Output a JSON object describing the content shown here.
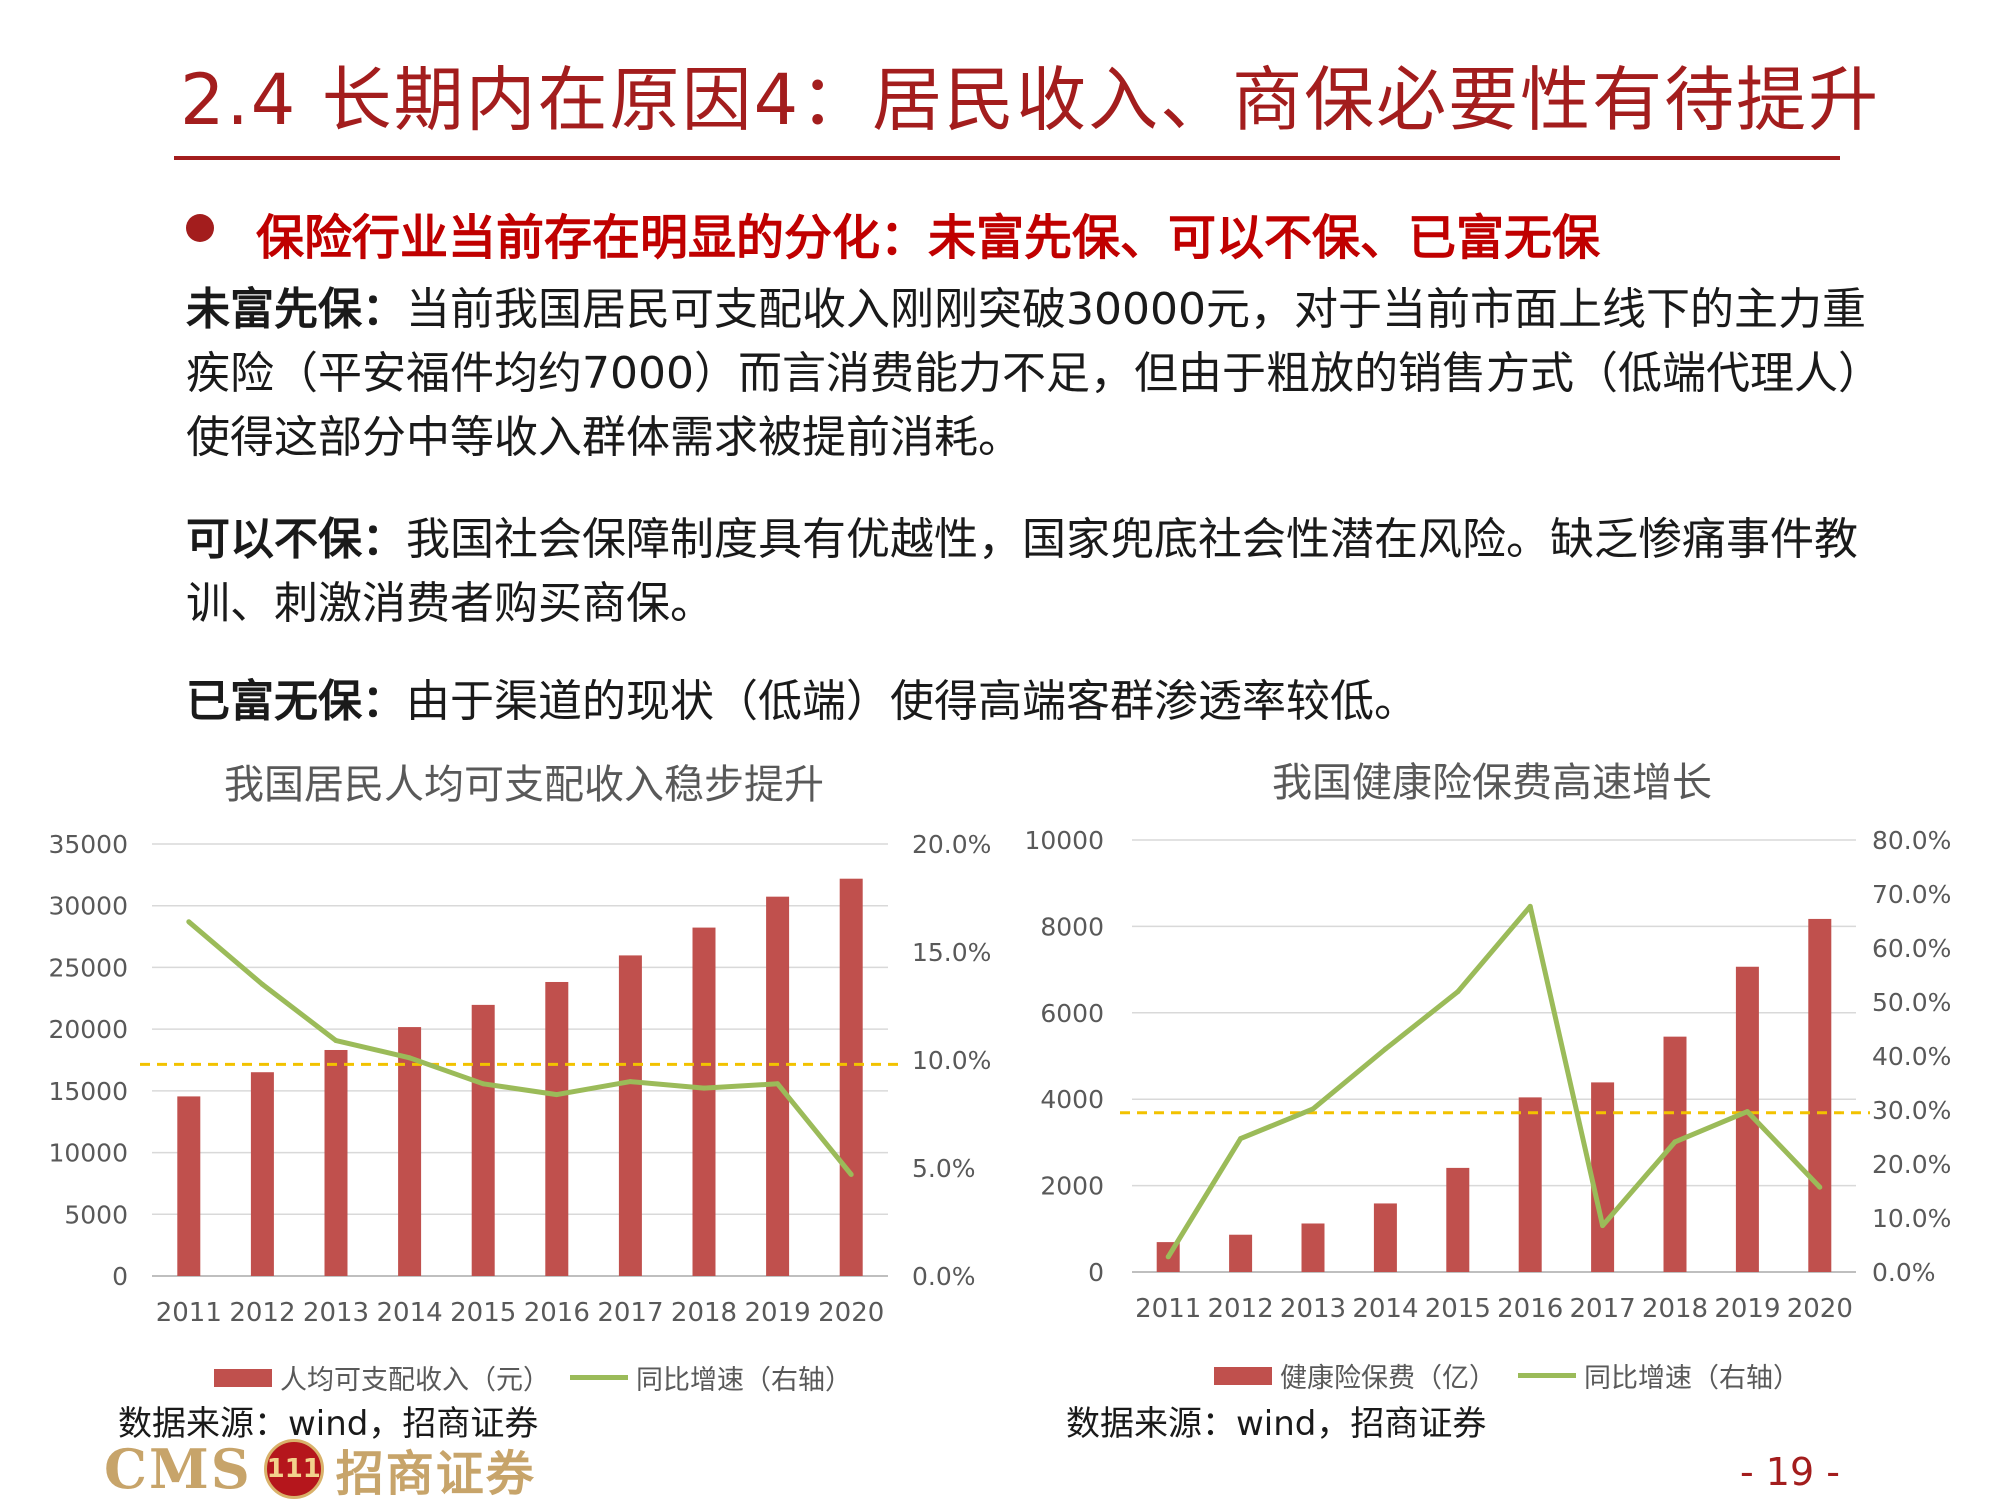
{
  "header": {
    "title": "2.4  长期内在原因4：居民收入、商保必要性有待提升",
    "bullet": "保险行业当前存在明显的分化：未富先保、可以不保、已富无保"
  },
  "paragraphs": [
    {
      "label": "未富先保：",
      "text": "当前我国居民可支配收入刚刚突破30000元，对于当前市面上线下的主力重疾险（平安福件均约7000）而言消费能力不足，但由于粗放的销售方式（低端代理人）使得这部分中等收入群体需求被提前消耗。"
    },
    {
      "label": "可以不保：",
      "text": "我国社会保障制度具有优越性，国家兜底社会性潜在风险。缺乏惨痛事件教训、刺激消费者购买商保。"
    },
    {
      "label": "已富无保：",
      "text": "由于渠道的现状（低端）使得高端客群渗透率较低。"
    }
  ],
  "colors": {
    "accent": "#a31d1d",
    "bar": "#c0504d",
    "line": "#9bbb59",
    "reference": "#f2c200"
  },
  "chart_data": [
    {
      "type": "bar",
      "title": "我国居民人均可支配收入稳步提升",
      "categories": [
        "2011",
        "2012",
        "2013",
        "2014",
        "2015",
        "2016",
        "2017",
        "2018",
        "2019",
        "2020"
      ],
      "series": [
        {
          "name": "人均可支配收入（元）",
          "type": "bar",
          "axis": "left",
          "values": [
            14550,
            16510,
            18311,
            20167,
            21966,
            23821,
            25974,
            28228,
            30733,
            32189
          ]
        },
        {
          "name": "同比增速（右轴）",
          "type": "line",
          "axis": "right",
          "values": [
            16.4,
            13.5,
            10.9,
            10.1,
            8.9,
            8.4,
            9.0,
            8.7,
            8.9,
            4.7
          ]
        }
      ],
      "left_axis": {
        "min": 0,
        "max": 35000,
        "ticks": [
          "0",
          "5000",
          "10000",
          "15000",
          "20000",
          "25000",
          "30000",
          "35000"
        ]
      },
      "right_axis": {
        "min": 0,
        "max": 20,
        "ticks": [
          "0.0%",
          "5.0%",
          "10.0%",
          "15.0%",
          "20.0%"
        ]
      },
      "reference_line": {
        "axis": "right",
        "value": 9.8,
        "style": "dashed"
      },
      "legend": "bottom",
      "source": "数据来源：wind，招商证券"
    },
    {
      "type": "bar",
      "title": "我国健康险保费高速增长",
      "categories": [
        "2011",
        "2012",
        "2013",
        "2014",
        "2015",
        "2016",
        "2017",
        "2018",
        "2019",
        "2020"
      ],
      "series": [
        {
          "name": "健康险保费（亿）",
          "type": "bar",
          "axis": "left",
          "values": [
            692,
            863,
            1123,
            1587,
            2410,
            4042,
            4389,
            5448,
            7066,
            8173
          ]
        },
        {
          "name": "同比增速（右轴）",
          "type": "line",
          "axis": "right",
          "values": [
            2.8,
            24.7,
            30.2,
            41.3,
            51.9,
            67.7,
            8.6,
            24.1,
            29.7,
            15.7
          ]
        }
      ],
      "left_axis": {
        "min": 0,
        "max": 10000,
        "ticks": [
          "0",
          "2000",
          "4000",
          "6000",
          "8000",
          "10000"
        ]
      },
      "right_axis": {
        "min": 0,
        "max": 80,
        "ticks": [
          "0.0%",
          "10.0%",
          "20.0%",
          "30.0%",
          "40.0%",
          "50.0%",
          "60.0%",
          "70.0%",
          "80.0%"
        ]
      },
      "reference_line": {
        "axis": "right",
        "value": 29.5,
        "style": "dashed"
      },
      "legend": "bottom",
      "source": "数据来源：wind，招商证券"
    }
  ],
  "footer": {
    "logo_text": "CMS",
    "logo_badge": "111",
    "logo_cn": "招商证券",
    "page": "- 19 -"
  }
}
